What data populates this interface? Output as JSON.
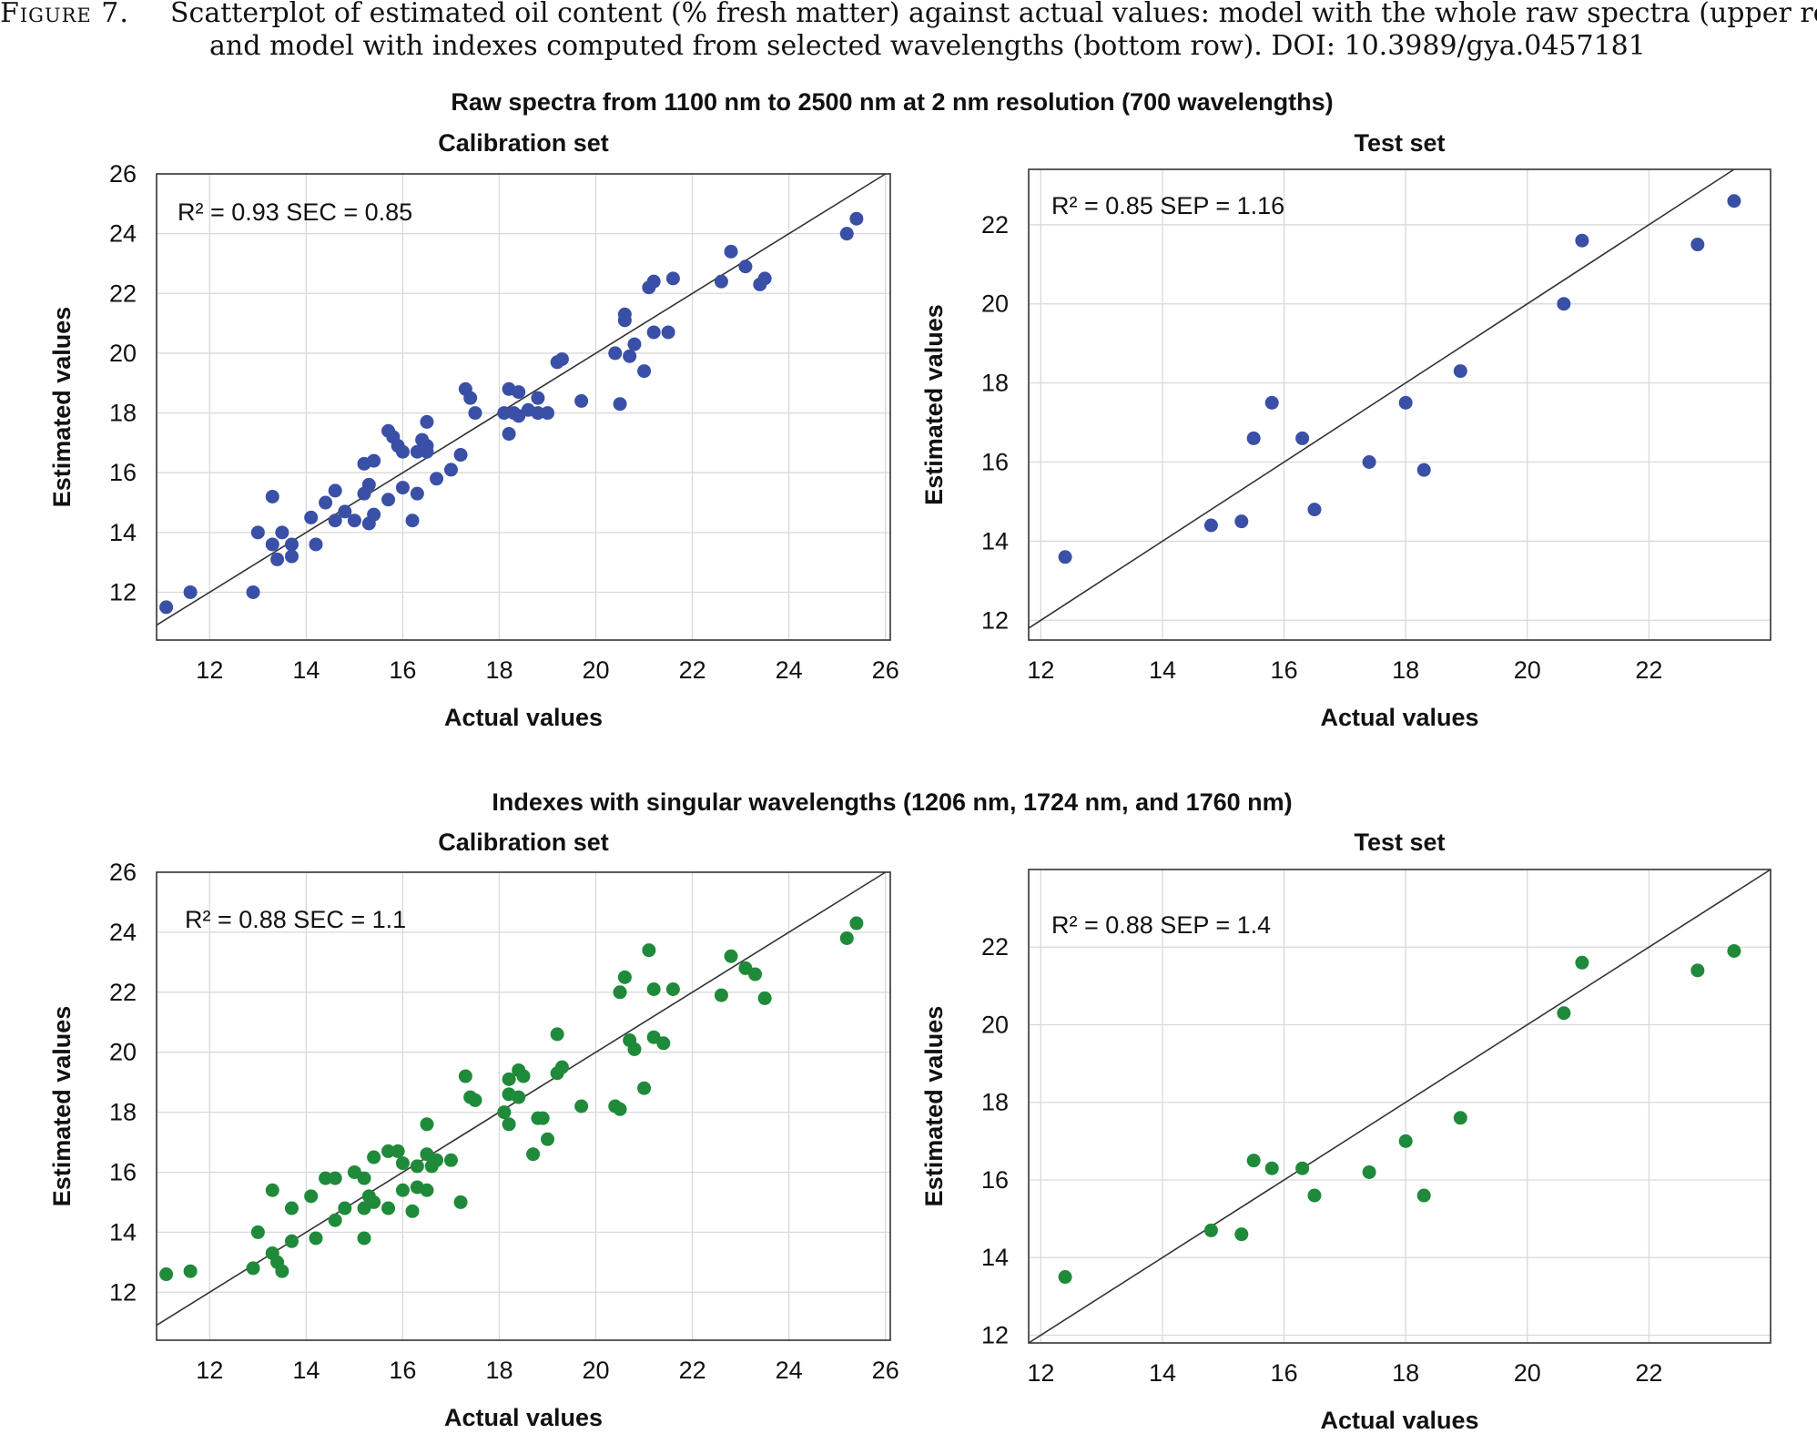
{
  "caption": {
    "label": "Figure 7.",
    "line1": "Scatterplot of estimated oil content (% fresh matter) against actual values: model with the whole raw spectra (upper row)",
    "line2": "and model with indexes computed from selected wavelengths (bottom row). DOI: 10.3989/gya.0457181"
  },
  "rows": [
    {
      "title": "Raw spectra from 1100 nm to 2500 nm at 2 nm resolution (700 wavelengths)"
    },
    {
      "title": "Indexes with singular wavelengths (1206 nm, 1724 nm, and 1760 nm)"
    }
  ],
  "colors": {
    "blue": "#3a4fa6",
    "green": "#1e8a3a"
  },
  "chart_data": [
    {
      "type": "scatter",
      "title": "Calibration set",
      "xlabel": "Actual values",
      "ylabel": "Estimated values",
      "annotation": "R² = 0.93 SEC = 0.85",
      "xlim": [
        10.9,
        26.1
      ],
      "ylim": [
        10.4,
        26
      ],
      "xticks": [
        12,
        14,
        16,
        18,
        20,
        22,
        24,
        26
      ],
      "yticks": [
        12,
        14,
        16,
        18,
        20,
        22,
        24,
        26
      ],
      "grid": true,
      "identity_line": true,
      "color": "#3a4fa6",
      "points": [
        [
          11.1,
          11.5
        ],
        [
          11.6,
          12.0
        ],
        [
          12.9,
          12.0
        ],
        [
          13.0,
          14.0
        ],
        [
          13.3,
          13.6
        ],
        [
          13.3,
          15.2
        ],
        [
          13.4,
          13.1
        ],
        [
          13.5,
          14.0
        ],
        [
          13.7,
          13.6
        ],
        [
          13.7,
          13.2
        ],
        [
          14.1,
          14.5
        ],
        [
          14.2,
          13.6
        ],
        [
          14.4,
          15.0
        ],
        [
          14.6,
          14.4
        ],
        [
          14.6,
          15.4
        ],
        [
          14.8,
          14.7
        ],
        [
          15.0,
          14.4
        ],
        [
          15.2,
          15.3
        ],
        [
          15.2,
          16.3
        ],
        [
          15.3,
          14.3
        ],
        [
          15.3,
          15.6
        ],
        [
          15.4,
          14.6
        ],
        [
          15.4,
          16.4
        ],
        [
          15.7,
          15.1
        ],
        [
          15.7,
          17.4
        ],
        [
          15.8,
          17.2
        ],
        [
          15.9,
          16.9
        ],
        [
          16.0,
          15.5
        ],
        [
          16.0,
          16.7
        ],
        [
          16.2,
          14.4
        ],
        [
          16.3,
          15.3
        ],
        [
          16.3,
          16.7
        ],
        [
          16.4,
          17.1
        ],
        [
          16.5,
          16.7
        ],
        [
          16.5,
          17.7
        ],
        [
          16.5,
          16.9
        ],
        [
          16.7,
          15.8
        ],
        [
          17.0,
          16.1
        ],
        [
          17.2,
          16.6
        ],
        [
          17.3,
          18.8
        ],
        [
          17.4,
          18.5
        ],
        [
          17.5,
          18.0
        ],
        [
          18.1,
          18.0
        ],
        [
          18.2,
          18.8
        ],
        [
          18.2,
          17.3
        ],
        [
          18.3,
          18.0
        ],
        [
          18.4,
          17.9
        ],
        [
          18.4,
          18.7
        ],
        [
          18.6,
          18.1
        ],
        [
          18.8,
          18.5
        ],
        [
          18.8,
          18.0
        ],
        [
          19.0,
          18.0
        ],
        [
          19.2,
          19.7
        ],
        [
          19.3,
          19.8
        ],
        [
          19.7,
          18.4
        ],
        [
          20.4,
          20.0
        ],
        [
          20.5,
          18.3
        ],
        [
          20.6,
          21.1
        ],
        [
          20.6,
          21.3
        ],
        [
          20.7,
          19.9
        ],
        [
          20.8,
          20.3
        ],
        [
          21.0,
          19.4
        ],
        [
          21.1,
          22.2
        ],
        [
          21.2,
          22.4
        ],
        [
          21.2,
          20.7
        ],
        [
          21.5,
          20.7
        ],
        [
          21.6,
          22.5
        ],
        [
          22.6,
          22.4
        ],
        [
          22.8,
          23.4
        ],
        [
          23.1,
          22.9
        ],
        [
          23.4,
          22.3
        ],
        [
          23.5,
          22.5
        ],
        [
          25.2,
          24.0
        ],
        [
          25.4,
          24.5
        ]
      ]
    },
    {
      "type": "scatter",
      "title": "Test set",
      "xlabel": "Actual values",
      "ylabel": "Estimated values",
      "annotation": "R² = 0.85 SEP = 1.16",
      "xlim": [
        11.8,
        24.0
      ],
      "ylim": [
        11.5,
        23.4
      ],
      "xticks": [
        12,
        14,
        16,
        18,
        20,
        22
      ],
      "yticks": [
        12,
        14,
        16,
        18,
        20,
        22
      ],
      "grid": true,
      "identity_line": true,
      "color": "#3a4fa6",
      "points": [
        [
          12.4,
          13.6
        ],
        [
          14.8,
          14.4
        ],
        [
          15.3,
          14.5
        ],
        [
          15.5,
          16.6
        ],
        [
          15.8,
          17.5
        ],
        [
          16.3,
          16.6
        ],
        [
          16.5,
          14.8
        ],
        [
          17.4,
          16.0
        ],
        [
          18.0,
          17.5
        ],
        [
          18.3,
          15.8
        ],
        [
          18.9,
          18.3
        ],
        [
          20.6,
          20.0
        ],
        [
          20.9,
          21.6
        ],
        [
          22.8,
          21.5
        ],
        [
          23.4,
          22.6
        ]
      ]
    },
    {
      "type": "scatter",
      "title": "Calibration set",
      "xlabel": "Actual values",
      "ylabel": "Estimated values",
      "annotation": "R² = 0.88 SEC = 1.1",
      "xlim": [
        10.9,
        26.1
      ],
      "ylim": [
        10.4,
        26
      ],
      "xticks": [
        12,
        14,
        16,
        18,
        20,
        22,
        24,
        26
      ],
      "yticks": [
        12,
        14,
        16,
        18,
        20,
        22,
        24,
        26
      ],
      "grid": true,
      "identity_line": true,
      "color": "#1e8a3a",
      "points": [
        [
          11.1,
          12.6
        ],
        [
          11.6,
          12.7
        ],
        [
          12.9,
          12.8
        ],
        [
          13.0,
          14.0
        ],
        [
          13.3,
          13.3
        ],
        [
          13.3,
          15.4
        ],
        [
          13.4,
          13.0
        ],
        [
          13.5,
          12.7
        ],
        [
          13.7,
          14.8
        ],
        [
          13.7,
          13.7
        ],
        [
          14.1,
          15.2
        ],
        [
          14.2,
          13.8
        ],
        [
          14.4,
          15.8
        ],
        [
          14.6,
          14.4
        ],
        [
          14.6,
          15.8
        ],
        [
          14.8,
          14.8
        ],
        [
          15.0,
          16.0
        ],
        [
          15.2,
          15.8
        ],
        [
          15.2,
          14.8
        ],
        [
          15.2,
          13.8
        ],
        [
          15.3,
          15.2
        ],
        [
          15.4,
          16.5
        ],
        [
          15.4,
          15.0
        ],
        [
          15.7,
          14.8
        ],
        [
          15.7,
          16.7
        ],
        [
          15.9,
          16.7
        ],
        [
          16.0,
          15.4
        ],
        [
          16.0,
          16.3
        ],
        [
          16.2,
          14.7
        ],
        [
          16.3,
          16.2
        ],
        [
          16.3,
          15.5
        ],
        [
          16.5,
          17.6
        ],
        [
          16.5,
          16.6
        ],
        [
          16.5,
          15.4
        ],
        [
          16.6,
          16.2
        ],
        [
          16.7,
          16.4
        ],
        [
          17.0,
          16.4
        ],
        [
          17.2,
          15.0
        ],
        [
          17.3,
          19.2
        ],
        [
          17.4,
          18.5
        ],
        [
          17.5,
          18.4
        ],
        [
          18.1,
          18.0
        ],
        [
          18.2,
          19.1
        ],
        [
          18.2,
          18.6
        ],
        [
          18.2,
          17.6
        ],
        [
          18.4,
          19.4
        ],
        [
          18.4,
          18.5
        ],
        [
          18.5,
          19.2
        ],
        [
          18.7,
          16.6
        ],
        [
          18.8,
          17.8
        ],
        [
          18.9,
          17.8
        ],
        [
          19.0,
          17.1
        ],
        [
          19.2,
          20.6
        ],
        [
          19.2,
          19.3
        ],
        [
          19.3,
          19.5
        ],
        [
          19.7,
          18.2
        ],
        [
          20.4,
          18.2
        ],
        [
          20.5,
          18.1
        ],
        [
          20.5,
          22.0
        ],
        [
          20.6,
          22.5
        ],
        [
          20.7,
          20.4
        ],
        [
          20.8,
          20.1
        ],
        [
          21.0,
          18.8
        ],
        [
          21.1,
          23.4
        ],
        [
          21.2,
          22.1
        ],
        [
          21.2,
          20.5
        ],
        [
          21.4,
          20.3
        ],
        [
          21.6,
          22.1
        ],
        [
          22.6,
          21.9
        ],
        [
          22.8,
          23.2
        ],
        [
          23.1,
          22.8
        ],
        [
          23.3,
          22.6
        ],
        [
          23.5,
          21.8
        ],
        [
          25.2,
          23.8
        ],
        [
          25.4,
          24.3
        ]
      ]
    },
    {
      "type": "scatter",
      "title": "Test set",
      "xlabel": "Actual values",
      "ylabel": "Estimated values",
      "annotation": "R² = 0.88 SEP = 1.4",
      "xlim": [
        11.8,
        24.0
      ],
      "ylim": [
        11.8,
        24.0
      ],
      "xticks": [
        12,
        14,
        16,
        18,
        20,
        22
      ],
      "yticks": [
        12,
        14,
        16,
        18,
        20,
        22
      ],
      "grid": true,
      "identity_line": true,
      "color": "#1e8a3a",
      "points": [
        [
          12.4,
          13.5
        ],
        [
          14.8,
          14.7
        ],
        [
          15.3,
          14.6
        ],
        [
          15.5,
          16.5
        ],
        [
          15.8,
          16.3
        ],
        [
          16.3,
          16.3
        ],
        [
          16.5,
          15.6
        ],
        [
          17.4,
          16.2
        ],
        [
          18.0,
          17.0
        ],
        [
          18.3,
          15.6
        ],
        [
          18.9,
          17.6
        ],
        [
          20.6,
          20.3
        ],
        [
          20.9,
          21.6
        ],
        [
          22.8,
          21.4
        ],
        [
          23.4,
          21.9
        ]
      ]
    }
  ]
}
